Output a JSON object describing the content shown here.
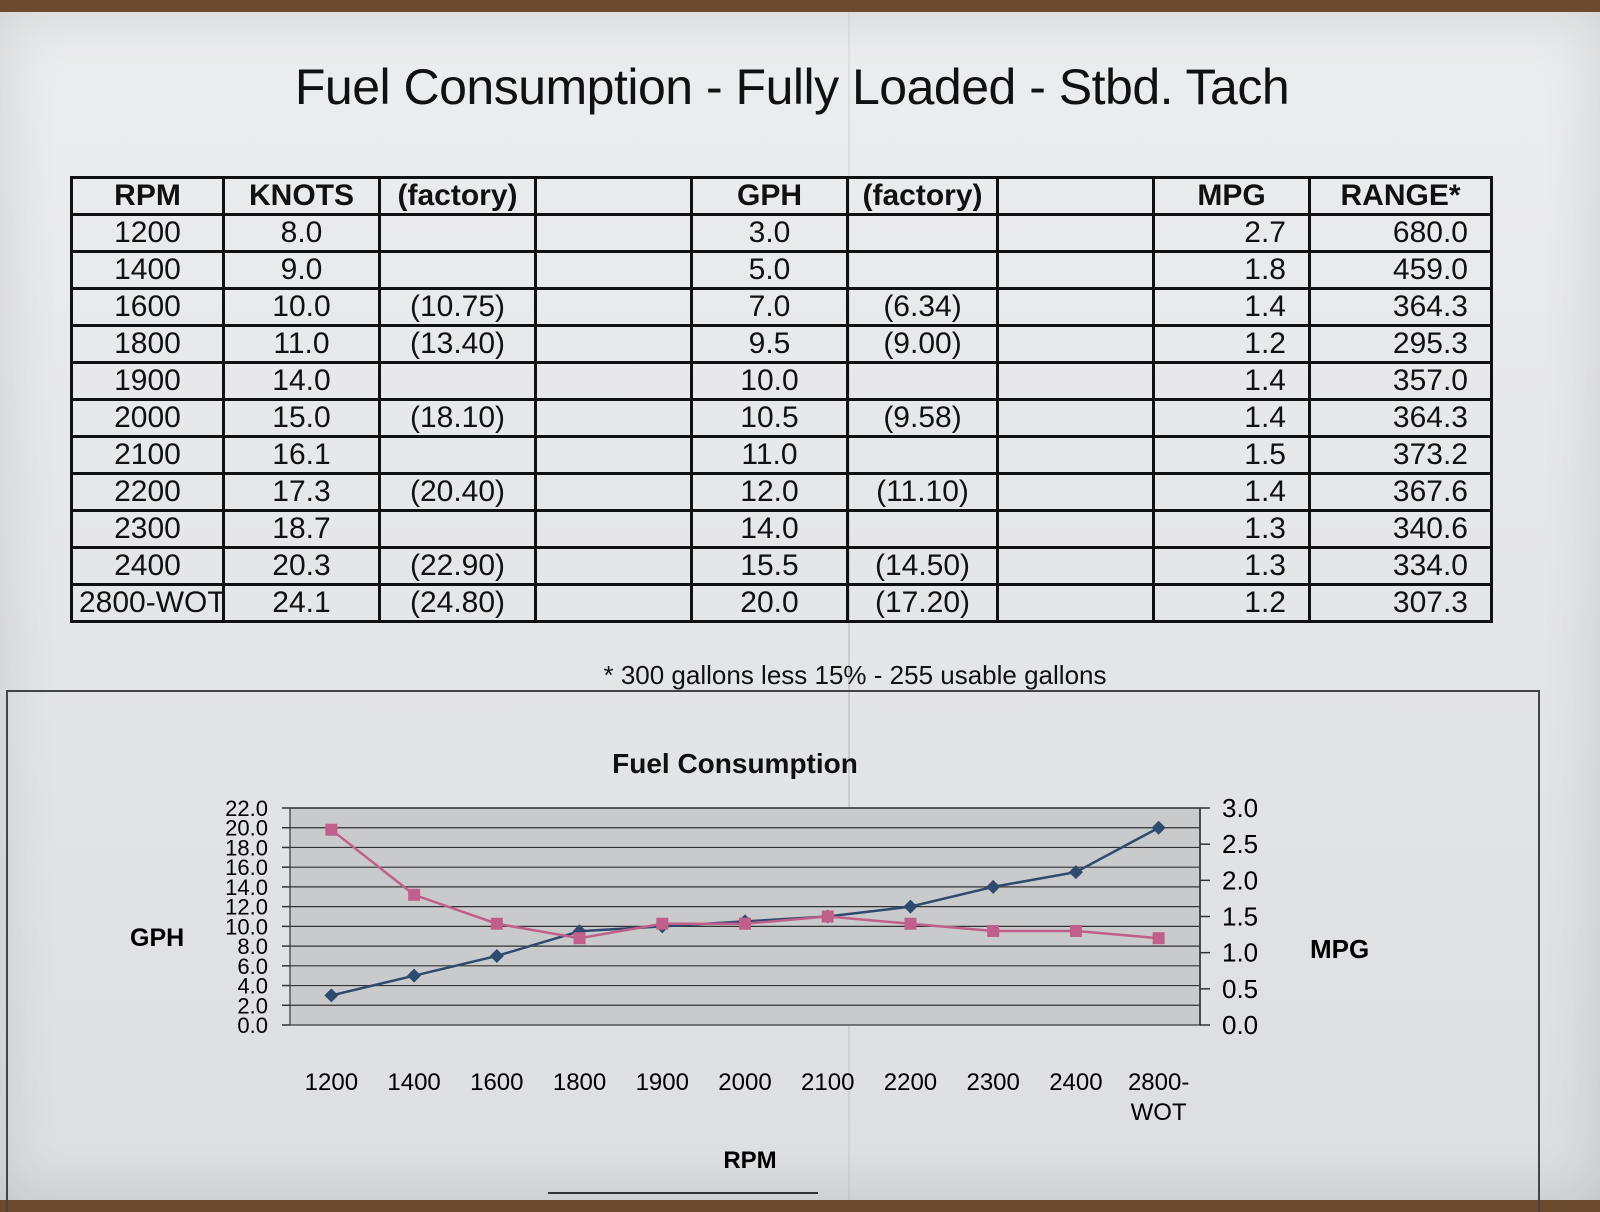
{
  "title": "Fuel Consumption - Fully Loaded - Stbd. Tach",
  "table": {
    "headers": [
      "RPM",
      "KNOTS",
      "(factory)",
      "",
      "GPH",
      "(factory)",
      "",
      "MPG",
      "RANGE*"
    ],
    "rows": [
      [
        "1200",
        "8.0",
        "",
        "",
        "3.0",
        "",
        "",
        "2.7",
        "680.0"
      ],
      [
        "1400",
        "9.0",
        "",
        "",
        "5.0",
        "",
        "",
        "1.8",
        "459.0"
      ],
      [
        "1600",
        "10.0",
        "(10.75)",
        "",
        "7.0",
        "(6.34)",
        "",
        "1.4",
        "364.3"
      ],
      [
        "1800",
        "11.0",
        "(13.40)",
        "",
        "9.5",
        "(9.00)",
        "",
        "1.2",
        "295.3"
      ],
      [
        "1900",
        "14.0",
        "",
        "",
        "10.0",
        "",
        "",
        "1.4",
        "357.0"
      ],
      [
        "2000",
        "15.0",
        "(18.10)",
        "",
        "10.5",
        "(9.58)",
        "",
        "1.4",
        "364.3"
      ],
      [
        "2100",
        "16.1",
        "",
        "",
        "11.0",
        "",
        "",
        "1.5",
        "373.2"
      ],
      [
        "2200",
        "17.3",
        "(20.40)",
        "",
        "12.0",
        "(11.10)",
        "",
        "1.4",
        "367.6"
      ],
      [
        "2300",
        "18.7",
        "",
        "",
        "14.0",
        "",
        "",
        "1.3",
        "340.6"
      ],
      [
        "2400",
        "20.3",
        "(22.90)",
        "",
        "15.5",
        "(14.50)",
        "",
        "1.3",
        "334.0"
      ],
      [
        "2800-WOT",
        "24.1",
        "(24.80)",
        "",
        "20.0",
        "(17.20)",
        "",
        "1.2",
        "307.3"
      ]
    ]
  },
  "note": "* 300 gallons less 15% - 255 usable gallons",
  "chart_data": {
    "type": "line",
    "title": "Fuel Consumption",
    "xlabel": "RPM",
    "ylabel": "GPH",
    "y2label": "MPG",
    "categories": [
      "1200",
      "1400",
      "1600",
      "1800",
      "1900",
      "2000",
      "2100",
      "2200",
      "2300",
      "2400",
      "2800-\nWOT"
    ],
    "ylim": [
      0,
      22
    ],
    "y2lim": [
      0,
      3
    ],
    "yticks": [
      "0.0",
      "2.0",
      "4.0",
      "6.0",
      "8.0",
      "10.0",
      "12.0",
      "14.0",
      "16.0",
      "18.0",
      "20.0",
      "22.0"
    ],
    "y2ticks": [
      "0.0",
      "0.5",
      "1.0",
      "1.5",
      "2.0",
      "2.5",
      "3.0"
    ],
    "grid": true,
    "series": [
      {
        "axis": "left",
        "color": "#2e4a6e",
        "marker": "diamond",
        "values": [
          3.0,
          5.0,
          7.0,
          9.5,
          10.0,
          10.5,
          11.0,
          12.0,
          14.0,
          15.5,
          20.0
        ]
      },
      {
        "axis": "right",
        "color": "#c0608a",
        "marker": "square",
        "values": [
          2.7,
          1.8,
          1.4,
          1.2,
          1.4,
          1.4,
          1.5,
          1.4,
          1.3,
          1.3,
          1.2
        ]
      }
    ]
  }
}
